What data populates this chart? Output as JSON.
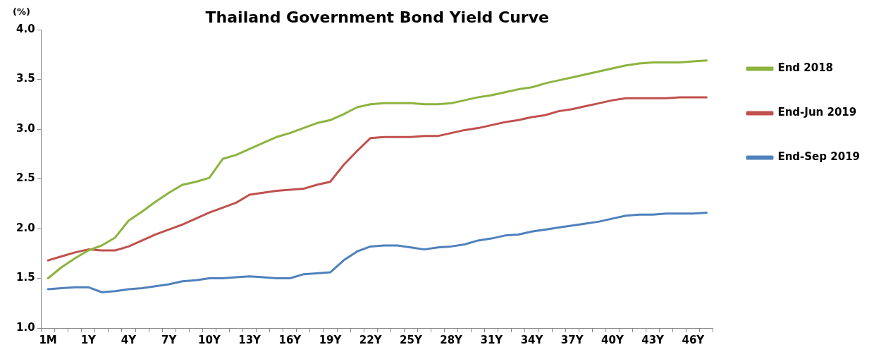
{
  "chart_data": {
    "type": "line",
    "title": "Thailand Government Bond Yield Curve",
    "ylabel": "(%)",
    "categories": [
      "1M",
      null,
      null,
      "1Y",
      null,
      null,
      "4Y",
      null,
      null,
      "7Y",
      null,
      null,
      "10Y",
      null,
      null,
      "13Y",
      null,
      null,
      "16Y",
      null,
      null,
      "19Y",
      null,
      null,
      "22Y",
      null,
      null,
      "25Y",
      null,
      null,
      "28Y",
      null,
      null,
      "31Y",
      null,
      null,
      "34Y",
      null,
      null,
      "37Y",
      null,
      null,
      "40Y",
      null,
      null,
      "43Y",
      null,
      null,
      "46Y",
      null
    ],
    "series": [
      {
        "name": "End 2018",
        "color": "#8db33f",
        "values": [
          1.5,
          1.61,
          1.7,
          1.78,
          1.83,
          1.91,
          2.08,
          2.17,
          2.27,
          2.36,
          2.44,
          2.47,
          2.51,
          2.7,
          2.74,
          2.8,
          2.86,
          2.92,
          2.96,
          3.01,
          3.06,
          3.09,
          3.15,
          3.22,
          3.25,
          3.26,
          3.26,
          3.26,
          3.25,
          3.25,
          3.26,
          3.29,
          3.32,
          3.34,
          3.37,
          3.4,
          3.42,
          3.46,
          3.49,
          3.52,
          3.55,
          3.58,
          3.61,
          3.64,
          3.66,
          3.67,
          3.67,
          3.67,
          3.68,
          3.69
        ]
      },
      {
        "name": "End-Jun 2019",
        "color": "#c0504d",
        "values": [
          1.68,
          1.72,
          1.76,
          1.79,
          1.78,
          1.78,
          1.82,
          1.88,
          1.94,
          1.99,
          2.04,
          2.1,
          2.16,
          2.21,
          2.26,
          2.34,
          2.36,
          2.38,
          2.39,
          2.4,
          2.44,
          2.47,
          2.64,
          2.78,
          2.91,
          2.92,
          2.92,
          2.92,
          2.93,
          2.93,
          2.96,
          2.99,
          3.01,
          3.04,
          3.07,
          3.09,
          3.12,
          3.14,
          3.18,
          3.2,
          3.23,
          3.26,
          3.29,
          3.31,
          3.31,
          3.31,
          3.31,
          3.32,
          3.32,
          3.32
        ]
      },
      {
        "name": "End-Sep 2019",
        "color": "#4f81bd",
        "values": [
          1.39,
          1.4,
          1.41,
          1.41,
          1.36,
          1.37,
          1.39,
          1.4,
          1.42,
          1.44,
          1.47,
          1.48,
          1.5,
          1.5,
          1.51,
          1.52,
          1.51,
          1.5,
          1.5,
          1.54,
          1.55,
          1.56,
          1.68,
          1.77,
          1.82,
          1.83,
          1.83,
          1.81,
          1.79,
          1.81,
          1.82,
          1.84,
          1.88,
          1.9,
          1.93,
          1.94,
          1.97,
          1.99,
          2.01,
          2.03,
          2.05,
          2.07,
          2.1,
          2.13,
          2.14,
          2.14,
          2.15,
          2.15,
          2.15,
          2.16
        ]
      }
    ],
    "ylim": [
      1.0,
      4.0
    ],
    "yticks": [
      {
        "value": 1.0,
        "label": "1.0"
      },
      {
        "value": 1.5,
        "label": "1.5"
      },
      {
        "value": 2.0,
        "label": "2.0"
      },
      {
        "value": 2.5,
        "label": "2.5"
      },
      {
        "value": 3.0,
        "label": "3.0"
      },
      {
        "value": 3.5,
        "label": "3.5"
      },
      {
        "value": 4.0,
        "label": "4.0"
      }
    ],
    "grid": false,
    "legend": "right",
    "marker": "none",
    "line_style": "solid"
  }
}
